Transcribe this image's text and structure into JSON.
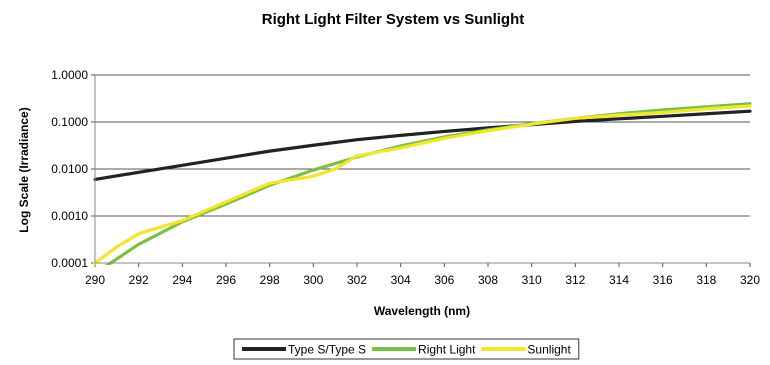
{
  "chart_data": {
    "type": "line",
    "title": "Right Light Filter System vs Sunlight",
    "xlabel": "Wavelength (nm)",
    "ylabel": "Log Scale (Irradiance)",
    "xlim": [
      290,
      320
    ],
    "ylim": [
      0.0001,
      1
    ],
    "yscale": "log",
    "grid": {
      "horizontal": true,
      "vertical": false
    },
    "legend_position": "bottom",
    "x_ticks": [
      "290",
      "292",
      "294",
      "296",
      "298",
      "300",
      "302",
      "304",
      "306",
      "308",
      "310",
      "312",
      "314",
      "316",
      "318",
      "320"
    ],
    "y_ticks": [
      {
        "value": 1,
        "label": "1.0000"
      },
      {
        "value": 0.1,
        "label": "0.1000"
      },
      {
        "value": 0.01,
        "label": "0.0100"
      },
      {
        "value": 0.001,
        "label": "0.0010"
      },
      {
        "value": 0.0001,
        "label": "0.0001"
      }
    ],
    "series": [
      {
        "name": "Type S/Type S",
        "color": "#222222",
        "points": [
          [
            290,
            0.006
          ],
          [
            292,
            0.0085
          ],
          [
            294,
            0.012
          ],
          [
            296,
            0.017
          ],
          [
            298,
            0.024
          ],
          [
            300,
            0.032
          ],
          [
            302,
            0.042
          ],
          [
            304,
            0.052
          ],
          [
            306,
            0.063
          ],
          [
            308,
            0.075
          ],
          [
            310,
            0.088
          ],
          [
            312,
            0.103
          ],
          [
            314,
            0.117
          ],
          [
            316,
            0.132
          ],
          [
            318,
            0.15
          ],
          [
            320,
            0.17
          ]
        ]
      },
      {
        "name": "Right Light",
        "color": "#7ac143",
        "points": [
          [
            290,
            6e-05
          ],
          [
            292,
            0.00025
          ],
          [
            294,
            0.00075
          ],
          [
            296,
            0.0018
          ],
          [
            298,
            0.0045
          ],
          [
            300,
            0.0095
          ],
          [
            302,
            0.018
          ],
          [
            304,
            0.031
          ],
          [
            306,
            0.048
          ],
          [
            308,
            0.068
          ],
          [
            310,
            0.092
          ],
          [
            312,
            0.12
          ],
          [
            314,
            0.15
          ],
          [
            316,
            0.18
          ],
          [
            318,
            0.21
          ],
          [
            320,
            0.245
          ]
        ]
      },
      {
        "name": "Sunlight",
        "color": "#f2e52e",
        "points": [
          [
            290,
            0.0001
          ],
          [
            291,
            0.00022
          ],
          [
            292,
            0.00042
          ],
          [
            294,
            0.0008
          ],
          [
            296,
            0.002
          ],
          [
            298,
            0.005
          ],
          [
            300,
            0.007
          ],
          [
            301,
            0.01
          ],
          [
            302,
            0.019
          ],
          [
            304,
            0.028
          ],
          [
            306,
            0.045
          ],
          [
            308,
            0.065
          ],
          [
            310,
            0.09
          ],
          [
            312,
            0.12
          ],
          [
            314,
            0.14
          ],
          [
            316,
            0.16
          ],
          [
            318,
            0.19
          ],
          [
            320,
            0.22
          ]
        ]
      }
    ]
  }
}
